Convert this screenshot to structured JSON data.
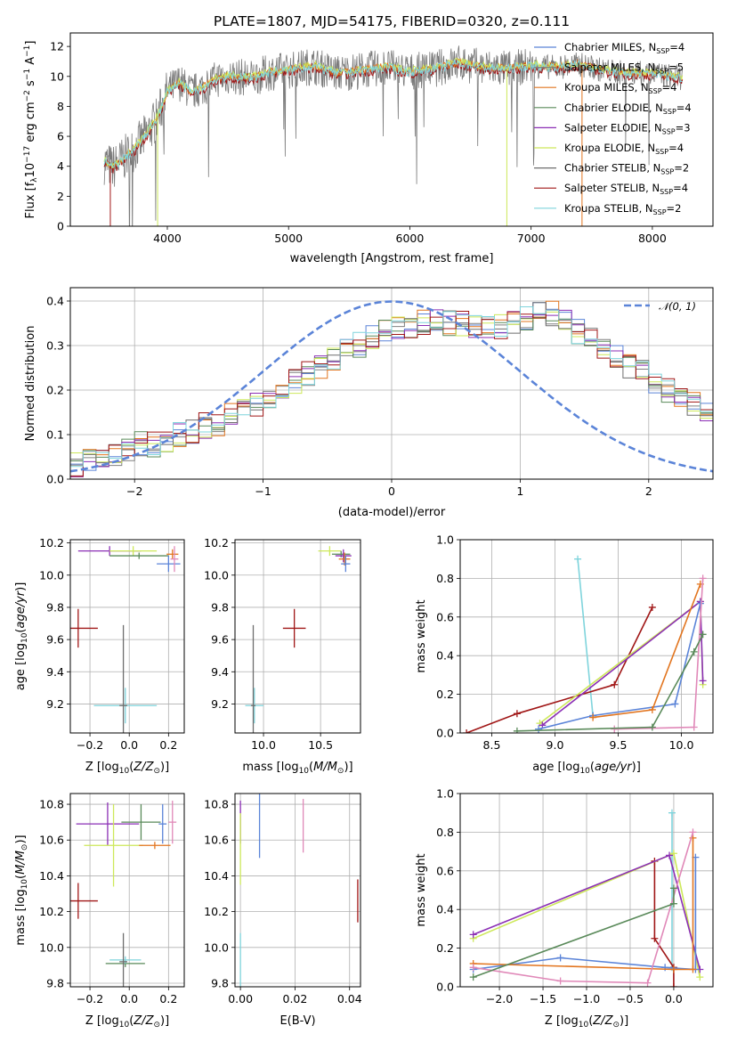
{
  "title": "PLATE=1807, MJD=54175, FIBERID=0320, z=0.111",
  "colors": {
    "chabrier_miles": "#5b84d8",
    "salpeter_miles": "#808080",
    "kroupa_miles": "#e2751f",
    "chabrier_elodie": "#5a8a5a",
    "salpeter_elodie": "#8b2fb5",
    "kroupa_elodie": "#cde85a",
    "chabrier_stelib": "#6e6e6e",
    "salpeter_stelib": "#a01616",
    "kroupa_stelib": "#7fd4dc",
    "pink": "#e088b8",
    "normal": "#5b84d8"
  },
  "chart_data": [
    {
      "type": "line",
      "xlabel": "wavelength [Angstrom, rest frame]",
      "ylabel": "Flux [f",
      "xlim": [
        3200,
        8500
      ],
      "ylim": [
        0,
        12.9
      ],
      "xticks": [
        "4000",
        "5000",
        "6000",
        "7000",
        "8000"
      ],
      "yticks": [
        "0",
        "2",
        "4",
        "6",
        "8",
        "10",
        "12"
      ],
      "legend": [
        {
          "name": "Chabrier MILES, N",
          "sub": "SSP",
          "tail": "=4",
          "color": "#5b84d8"
        },
        {
          "name": "Salpeter MILES, N",
          "sub": "SSP",
          "tail": "=5",
          "color": "#808080"
        },
        {
          "name": "Kroupa MILES, N",
          "sub": "SSP",
          "tail": "=4",
          "color": "#e2751f"
        },
        {
          "name": "Chabrier ELODIE, N",
          "sub": "SSP",
          "tail": "=4",
          "color": "#5a8a5a"
        },
        {
          "name": "Salpeter ELODIE, N",
          "sub": "SSP",
          "tail": "=3",
          "color": "#8b2fb5"
        },
        {
          "name": "Kroupa ELODIE, N",
          "sub": "SSP",
          "tail": "=4",
          "color": "#cde85a"
        },
        {
          "name": "Chabrier STELIB, N",
          "sub": "SSP",
          "tail": "=2",
          "color": "#6e6e6e"
        },
        {
          "name": "Salpeter STELIB, N",
          "sub": "SSP",
          "tail": "=4",
          "color": "#a01616"
        },
        {
          "name": "Kroupa STELIB, N",
          "sub": "SSP",
          "tail": "=2",
          "color": "#7fd4dc"
        }
      ],
      "model_envelope": {
        "x": [
          3480,
          3550,
          3650,
          3700,
          3800,
          3900,
          3950,
          4000,
          4100,
          4200,
          4300,
          4400,
          4500,
          4700,
          4860,
          5000,
          5200,
          5400,
          5600,
          5800,
          6000,
          6200,
          6400,
          6600,
          6800,
          7000,
          7200,
          7400,
          7600,
          7800,
          8000,
          8250
        ],
        "y": [
          4.3,
          3.9,
          4.6,
          4.9,
          5.8,
          7.0,
          7.9,
          9.0,
          9.6,
          8.9,
          9.3,
          9.8,
          10.0,
          9.9,
          10.3,
          10.4,
          10.7,
          10.2,
          10.4,
          10.6,
          10.3,
          10.5,
          10.9,
          10.6,
          10.5,
          10.7,
          10.6,
          10.8,
          10.4,
          10.2,
          10.2,
          9.9
        ]
      }
    },
    {
      "type": "step",
      "xlabel": "(data-model)/error",
      "ylabel": "Normed distribution",
      "xlim": [
        -2.5,
        2.5
      ],
      "ylim": [
        0,
        0.43
      ],
      "xticks": [
        "−2",
        "−1",
        "0",
        "1",
        "2"
      ],
      "yticks": [
        "0.0",
        "0.1",
        "0.2",
        "0.3",
        "0.4"
      ],
      "legend_label": "𝒩(0, 1)",
      "bin_width": 0.1,
      "hist_base": [
        0.03,
        0.04,
        0.05,
        0.06,
        0.07,
        0.08,
        0.08,
        0.09,
        0.1,
        0.11,
        0.12,
        0.12,
        0.14,
        0.15,
        0.17,
        0.19,
        0.21,
        0.22,
        0.24,
        0.25,
        0.27,
        0.29,
        0.3,
        0.32,
        0.33,
        0.34,
        0.34,
        0.35,
        0.36,
        0.35,
        0.35,
        0.34,
        0.34,
        0.34,
        0.35,
        0.36,
        0.38,
        0.37,
        0.35,
        0.33,
        0.31,
        0.29,
        0.27,
        0.25,
        0.24,
        0.21,
        0.2,
        0.18,
        0.17,
        0.15,
        0.14
      ]
    },
    {
      "type": "scatter",
      "xlabel": "Z [log",
      "ylabel": "age  [log",
      "xlim": [
        -0.3,
        0.28
      ],
      "ylim": [
        9.02,
        10.22
      ],
      "xticks": [
        "−0.2",
        "0.0",
        "0.2"
      ],
      "yticks": [
        "9.2",
        "9.4",
        "9.6",
        "9.8",
        "10.0",
        "10.2"
      ],
      "errorbars": [
        {
          "x": -0.26,
          "y": 9.67,
          "xerr": 0.1,
          "yerr": 0.12,
          "color": "#a01616"
        },
        {
          "x": -0.02,
          "y": 9.19,
          "xerr": 0.16,
          "yerr": 0.11,
          "color": "#7fd4dc"
        },
        {
          "x": -0.03,
          "y": 9.19,
          "xerr": 0.02,
          "yerr": 0.5,
          "color": "#6e6e6e"
        },
        {
          "x": -0.1,
          "y": 10.15,
          "xerr": 0.16,
          "yerr": 0.03,
          "color": "#8b2fb5"
        },
        {
          "x": 0.02,
          "y": 10.15,
          "xerr": 0.12,
          "yerr": 0.03,
          "color": "#cde85a"
        },
        {
          "x": 0.05,
          "y": 10.12,
          "xerr": 0.15,
          "yerr": 0.02,
          "color": "#5a8a5a"
        },
        {
          "x": 0.2,
          "y": 10.07,
          "xerr": 0.06,
          "yerr": 0.05,
          "color": "#5b84d8"
        },
        {
          "x": 0.22,
          "y": 10.13,
          "xerr": 0.03,
          "yerr": 0.03,
          "color": "#e2751f"
        },
        {
          "x": 0.23,
          "y": 10.1,
          "xerr": 0.02,
          "yerr": 0.08,
          "color": "#e088b8"
        }
      ]
    },
    {
      "type": "scatter",
      "xlabel": "mass [log",
      "ylabel": "",
      "xlim": [
        9.75,
        10.85
      ],
      "ylim": [
        9.02,
        10.22
      ],
      "xticks": [
        "10.0",
        "10.5"
      ],
      "yticks": [
        "9.2",
        "9.4",
        "9.6",
        "9.8",
        "10.0",
        "10.2"
      ],
      "errorbars": [
        {
          "x": 10.27,
          "y": 9.67,
          "xerr": 0.1,
          "yerr": 0.12,
          "color": "#a01616"
        },
        {
          "x": 9.92,
          "y": 9.19,
          "xerr": 0.08,
          "yerr": 0.11,
          "color": "#7fd4dc"
        },
        {
          "x": 9.91,
          "y": 9.19,
          "xerr": 0.02,
          "yerr": 0.5,
          "color": "#6e6e6e"
        },
        {
          "x": 10.58,
          "y": 10.15,
          "xerr": 0.1,
          "yerr": 0.03,
          "color": "#cde85a"
        },
        {
          "x": 10.68,
          "y": 10.13,
          "xerr": 0.08,
          "yerr": 0.02,
          "color": "#5a8a5a"
        },
        {
          "x": 10.7,
          "y": 10.12,
          "xerr": 0.07,
          "yerr": 0.04,
          "color": "#8b2fb5"
        },
        {
          "x": 10.71,
          "y": 10.1,
          "xerr": 0.05,
          "yerr": 0.04,
          "color": "#e2751f"
        },
        {
          "x": 10.72,
          "y": 10.07,
          "xerr": 0.04,
          "yerr": 0.05,
          "color": "#5b84d8"
        }
      ]
    },
    {
      "type": "line",
      "xlabel": "age  [log",
      "ylabel": "mass weight",
      "xlim": [
        8.25,
        10.25
      ],
      "ylim": [
        0,
        1
      ],
      "xticks": [
        "8.5",
        "9.0",
        "9.5",
        "10.0"
      ],
      "yticks": [
        "0.0",
        "0.2",
        "0.4",
        "0.6",
        "0.8",
        "1.0"
      ],
      "series": [
        {
          "color": "#7fd4dc",
          "x": [
            9.18,
            9.3
          ],
          "y": [
            0.9,
            0.09
          ]
        },
        {
          "color": "#a01616",
          "x": [
            8.3,
            8.7,
            9.47,
            9.77
          ],
          "y": [
            0.0,
            0.1,
            0.25,
            0.65
          ]
        },
        {
          "color": "#cde85a",
          "x": [
            8.88,
            10.15,
            10.17
          ],
          "y": [
            0.05,
            0.68,
            0.25
          ]
        },
        {
          "color": "#8b2fb5",
          "x": [
            8.9,
            10.15,
            10.17
          ],
          "y": [
            0.04,
            0.68,
            0.27
          ]
        },
        {
          "color": "#5b84d8",
          "x": [
            8.87,
            9.3,
            9.95,
            10.15
          ],
          "y": [
            0.02,
            0.09,
            0.15,
            0.67
          ]
        },
        {
          "color": "#e2751f",
          "x": [
            9.3,
            9.77,
            10.15
          ],
          "y": [
            0.08,
            0.12,
            0.77
          ]
        },
        {
          "color": "#e088b8",
          "x": [
            9.47,
            10.1,
            10.17
          ],
          "y": [
            0.02,
            0.03,
            0.8
          ]
        },
        {
          "color": "#5a8a5a",
          "x": [
            8.7,
            9.77,
            10.1,
            10.17
          ],
          "y": [
            0.01,
            0.03,
            0.42,
            0.51
          ]
        }
      ]
    },
    {
      "type": "scatter",
      "xlabel": "Z [log",
      "ylabel": "mass [log",
      "xlim": [
        -0.3,
        0.28
      ],
      "ylim": [
        9.78,
        10.86
      ],
      "xticks": [
        "−0.2",
        "0.0",
        "0.2"
      ],
      "yticks": [
        "9.8",
        "10.0",
        "10.2",
        "10.4",
        "10.6",
        "10.8"
      ],
      "errorbars": [
        {
          "x": -0.26,
          "y": 10.26,
          "xerr": 0.1,
          "yerr": 0.1,
          "color": "#a01616"
        },
        {
          "x": -0.02,
          "y": 9.91,
          "xerr": 0.1,
          "yerr": 0.02,
          "color": "#5a8a5a"
        },
        {
          "x": -0.02,
          "y": 9.93,
          "xerr": 0.08,
          "yerr": 0.02,
          "color": "#7fd4dc"
        },
        {
          "x": -0.03,
          "y": 9.92,
          "xerr": 0.02,
          "yerr": 0.16,
          "color": "#6e6e6e"
        },
        {
          "x": -0.11,
          "y": 10.69,
          "xerr": 0.16,
          "yerr": 0.12,
          "color": "#8b2fb5"
        },
        {
          "x": -0.08,
          "y": 10.57,
          "xerr": 0.15,
          "yerr": 0.23,
          "color": "#cde85a"
        },
        {
          "x": 0.06,
          "y": 10.7,
          "xerr": 0.1,
          "yerr": 0.1,
          "color": "#5a8a5a"
        },
        {
          "x": 0.13,
          "y": 10.57,
          "xerr": 0.08,
          "yerr": 0.02,
          "color": "#e2751f"
        },
        {
          "x": 0.17,
          "y": 10.69,
          "xerr": 0.02,
          "yerr": 0.11,
          "color": "#5b84d8"
        },
        {
          "x": 0.22,
          "y": 10.7,
          "xerr": 0.02,
          "yerr": 0.12,
          "color": "#e088b8"
        }
      ]
    },
    {
      "type": "scatter",
      "xlabel": "E(B-V)",
      "ylabel": "",
      "xlim": [
        -0.002,
        0.044
      ],
      "ylim": [
        9.78,
        10.86
      ],
      "xticks": [
        "0.00",
        "0.02",
        "0.04"
      ],
      "yticks": [
        "9.8",
        "10.0",
        "10.2",
        "10.4",
        "10.6",
        "10.8"
      ],
      "errorbars": [
        {
          "x": 0.0,
          "y": 10.7,
          "xerr": 0.0,
          "yerr": 0.12,
          "color": "#8b2fb5"
        },
        {
          "x": 0.0,
          "y": 10.55,
          "xerr": 0.0,
          "yerr": 0.2,
          "color": "#cde85a"
        },
        {
          "x": 0.0,
          "y": 9.92,
          "xerr": 0.0,
          "yerr": 0.16,
          "color": "#7fd4dc"
        },
        {
          "x": 0.007,
          "y": 10.69,
          "xerr": 0.0,
          "yerr": 0.19,
          "color": "#5b84d8"
        },
        {
          "x": 0.023,
          "y": 10.68,
          "xerr": 0.0,
          "yerr": 0.15,
          "color": "#e088b8"
        },
        {
          "x": 0.043,
          "y": 10.26,
          "xerr": 0.0,
          "yerr": 0.12,
          "color": "#a01616"
        }
      ]
    },
    {
      "type": "line",
      "xlabel": "Z [log",
      "ylabel": "mass weight",
      "xlim": [
        -2.45,
        0.45
      ],
      "ylim": [
        0,
        1
      ],
      "xticks": [
        "−2.0",
        "−1.5",
        "−1.0",
        "−0.5",
        "0.0"
      ],
      "yticks": [
        "0.0",
        "0.2",
        "0.4",
        "0.6",
        "0.8",
        "1.0"
      ],
      "series": [
        {
          "color": "#7fd4dc",
          "x": [
            -0.02,
            -0.02
          ],
          "y": [
            0.9,
            0.1
          ]
        },
        {
          "color": "#a01616",
          "x": [
            -0.22,
            -0.22,
            0.0,
            0.0
          ],
          "y": [
            0.65,
            0.25,
            0.1,
            0.0
          ]
        },
        {
          "color": "#cde85a",
          "x": [
            -2.3,
            0.0,
            0.3
          ],
          "y": [
            0.25,
            0.69,
            0.05
          ]
        },
        {
          "color": "#8b2fb5",
          "x": [
            -2.3,
            -0.05,
            0.3
          ],
          "y": [
            0.27,
            0.68,
            0.09
          ]
        },
        {
          "color": "#5b84d8",
          "x": [
            -2.3,
            -1.3,
            -0.1,
            0.25,
            0.25
          ],
          "y": [
            0.09,
            0.15,
            0.1,
            0.09,
            0.67
          ]
        },
        {
          "color": "#e2751f",
          "x": [
            -2.3,
            0.0,
            0.22,
            0.22
          ],
          "y": [
            0.12,
            0.09,
            0.09,
            0.77
          ]
        },
        {
          "color": "#e088b8",
          "x": [
            -2.3,
            -1.3,
            -0.3,
            0.22
          ],
          "y": [
            0.1,
            0.03,
            0.02,
            0.8
          ]
        },
        {
          "color": "#5a8a5a",
          "x": [
            -2.3,
            0.0,
            0.0
          ],
          "y": [
            0.05,
            0.43,
            0.51
          ]
        }
      ]
    }
  ]
}
